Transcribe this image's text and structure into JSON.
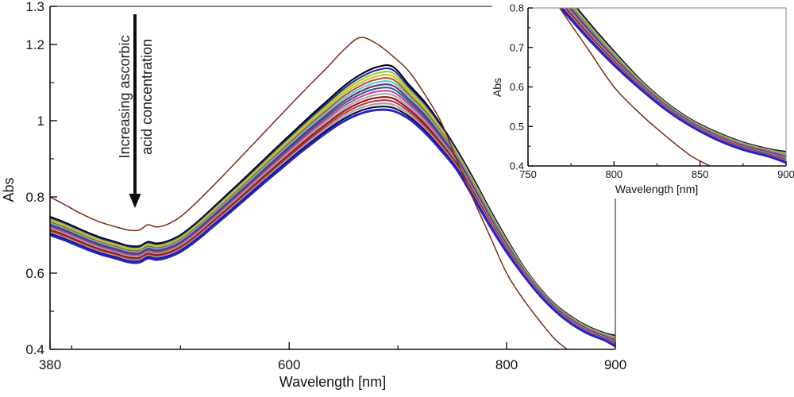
{
  "chart_data": {
    "type": "line",
    "description_visible_text_only": true,
    "main": {
      "xlabel": "Wavelength [nm]",
      "ylabel": "Abs",
      "xlim": [
        380,
        900
      ],
      "ylim": [
        0.4,
        1.3
      ],
      "x_ticks": {
        "labeled": [
          [
            380,
            "380"
          ],
          [
            600,
            "600"
          ],
          [
            800,
            "800"
          ],
          [
            900,
            "900"
          ]
        ],
        "minor": [
          400,
          500,
          700
        ]
      },
      "y_ticks": {
        "labeled": [
          [
            0.4,
            "0.4"
          ],
          [
            0.6,
            "0.6"
          ],
          [
            0.8,
            "0.8"
          ],
          [
            1,
            "1"
          ],
          [
            1.2,
            "1.2"
          ],
          [
            1.3,
            "1.3"
          ]
        ],
        "minor": [
          0.5,
          0.7,
          0.9,
          1.1
        ]
      },
      "annotation": {
        "line1": "Increasing ascorbic",
        "line2": "acid concentration",
        "arrow_direction": "down"
      }
    },
    "inset": {
      "xlabel": "Wavelength [nm]",
      "ylabel": "Abs",
      "xlim": [
        750,
        900
      ],
      "ylim": [
        0.4,
        0.8
      ],
      "x_ticks": {
        "labeled": [
          [
            750,
            "750"
          ],
          [
            800,
            "800"
          ],
          [
            850,
            "850"
          ],
          [
            900,
            "900"
          ]
        ],
        "minor": [
          775,
          825,
          875
        ]
      },
      "y_ticks": {
        "labeled": [
          [
            0.4,
            "0.4"
          ],
          [
            0.5,
            "0.5"
          ],
          [
            0.6,
            "0.6"
          ],
          [
            0.7,
            "0.7"
          ],
          [
            0.8,
            "0.8"
          ]
        ],
        "minor": [
          0.45,
          0.55,
          0.65,
          0.75
        ]
      }
    },
    "wavelength_nm": [
      380,
      392,
      404,
      416,
      428,
      440,
      452,
      462,
      470,
      478,
      488,
      500,
      515,
      530,
      545,
      560,
      575,
      590,
      605,
      620,
      635,
      650,
      665,
      680,
      695,
      710,
      725,
      740,
      755,
      770,
      785,
      800,
      815,
      830,
      845,
      860,
      875,
      890,
      900
    ],
    "series": [
      {
        "id": "top-outlier-spectrum",
        "color": "#7e2a10",
        "line_width": 1.5,
        "abs": [
          0.8,
          0.782,
          0.763,
          0.746,
          0.732,
          0.722,
          0.713,
          0.713,
          0.727,
          0.721,
          0.728,
          0.748,
          0.786,
          0.829,
          0.873,
          0.918,
          0.963,
          1.008,
          1.053,
          1.097,
          1.14,
          1.185,
          1.218,
          1.203,
          1.17,
          1.13,
          1.068,
          0.995,
          0.89,
          0.79,
          0.695,
          0.6,
          0.533,
          0.476,
          0.425,
          0.392,
          0.368,
          0.35,
          0.342
        ]
      }
    ],
    "bundle": {
      "count": 15,
      "colors": [
        "#000000",
        "#2121bd",
        "#9acd32",
        "#b9c832",
        "#c25420",
        "#5bc8c8",
        "#5b2d8e",
        "#2e6858",
        "#c43fc4",
        "#a9a9a9",
        "#7e1d1d",
        "#cc2f2f",
        "#a79ac0",
        "#121212",
        "#2323dd"
      ],
      "line_width": 2.1,
      "bottom_curve_line_width": 2.9,
      "top_abs": [
        0.748,
        0.735,
        0.72,
        0.705,
        0.692,
        0.682,
        0.672,
        0.671,
        0.682,
        0.678,
        0.684,
        0.7,
        0.733,
        0.772,
        0.812,
        0.852,
        0.893,
        0.934,
        0.974,
        1.014,
        1.052,
        1.09,
        1.12,
        1.14,
        1.142,
        1.095,
        1.048,
        0.988,
        0.92,
        0.845,
        0.765,
        0.69,
        0.62,
        0.562,
        0.517,
        0.485,
        0.46,
        0.443,
        0.436
      ],
      "bottom_abs": [
        0.7,
        0.688,
        0.674,
        0.66,
        0.648,
        0.639,
        0.629,
        0.628,
        0.639,
        0.635,
        0.641,
        0.656,
        0.686,
        0.722,
        0.758,
        0.795,
        0.832,
        0.868,
        0.904,
        0.938,
        0.97,
        0.998,
        1.018,
        1.028,
        1.026,
        1.005,
        0.968,
        0.921,
        0.868,
        0.795,
        0.722,
        0.655,
        0.596,
        0.543,
        0.5,
        0.466,
        0.441,
        0.424,
        0.408
      ]
    }
  }
}
